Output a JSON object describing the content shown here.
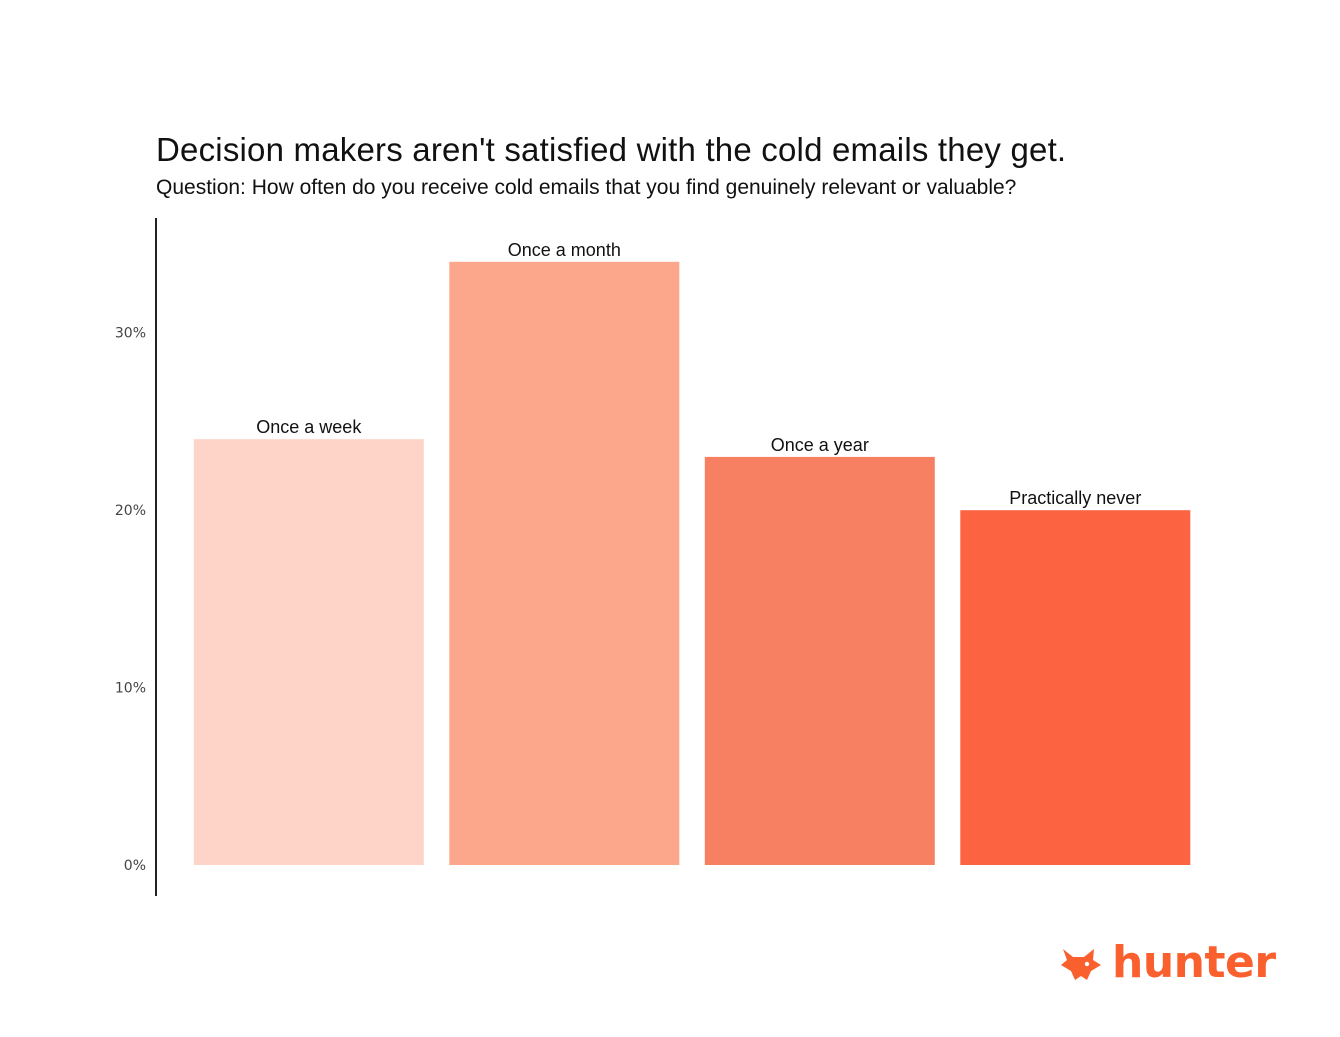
{
  "chart_data": {
    "type": "bar",
    "title": "Decision makers aren't satisfied with the cold emails they get.",
    "subtitle": "Question: How often do you receive cold emails that you find genuinely relevant or valuable?",
    "categories": [
      "Once a week",
      "Once a month",
      "Once a year",
      "Practically never"
    ],
    "values": [
      24,
      34,
      23,
      20
    ],
    "bar_colors": [
      "#fed3c8",
      "#fca68c",
      "#f88062",
      "#fc6341"
    ],
    "yticks": [
      0,
      10,
      20,
      30
    ],
    "ytick_labels": [
      "0%",
      "10%",
      "20%",
      "30%"
    ],
    "ylim": [
      0,
      37.2
    ],
    "xlabel": "",
    "ylabel": "",
    "grid": false,
    "legend": "none"
  },
  "brand": {
    "name": "hunter",
    "icon": "fox-icon",
    "color": "#fa5f2e"
  }
}
